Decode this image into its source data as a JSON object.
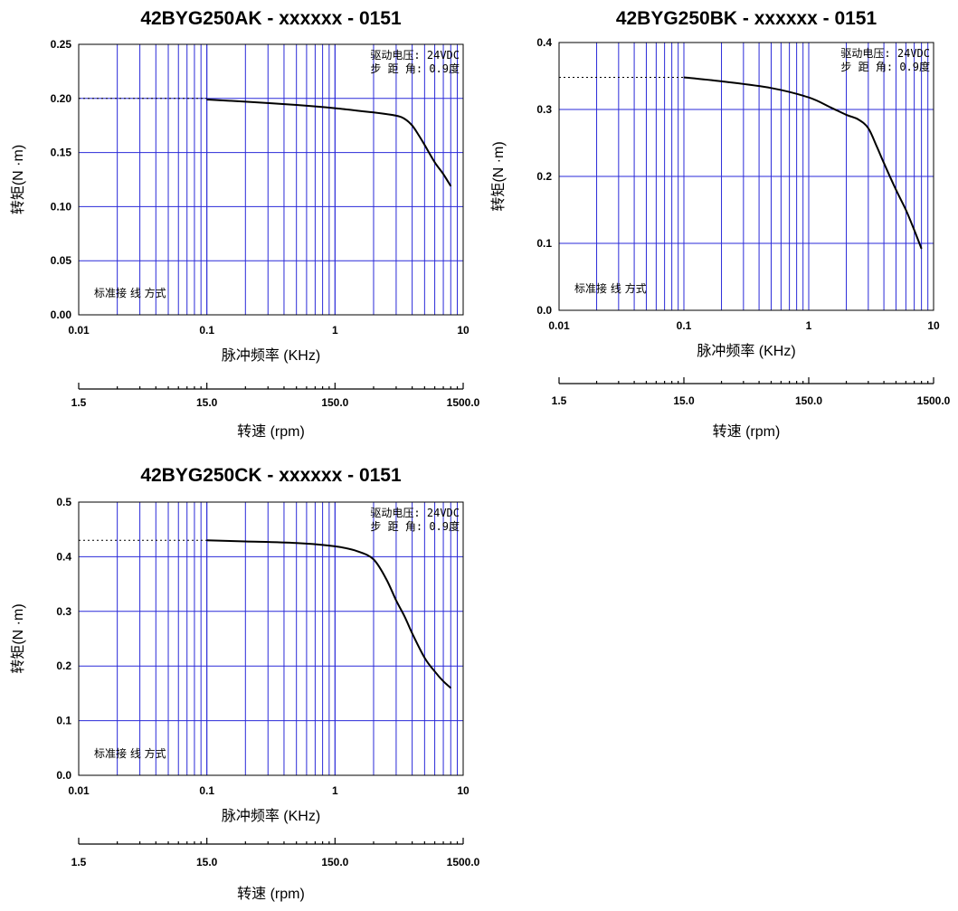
{
  "chart_data": [
    {
      "type": "line",
      "title": "42BYG250AK - xxxxxx - 0151",
      "xlabel": "脉冲频率 (KHz)",
      "ylabel": "转矩(N ·m)",
      "x2label": "转速 (rpm)",
      "xscale": "log",
      "xlim": [
        0.01,
        10
      ],
      "ylim": [
        0,
        0.25
      ],
      "yticks": [
        "0.00",
        "0.05",
        "0.10",
        "0.15",
        "0.20",
        "0.25"
      ],
      "xticks": [
        "0.01",
        "0.1",
        "1",
        "10"
      ],
      "rpmticks": [
        "1.5",
        "15.0",
        "150.0",
        "1500.0"
      ],
      "annotations": [
        "驱动电压: 24VDC",
        "步 距 角: 0.9度"
      ],
      "wiring": "标准接 线 方式",
      "holding_dashed": {
        "x": [
          0.01,
          0.1
        ],
        "y": 0.2
      },
      "series": [
        {
          "x": [
            0.1,
            0.2,
            0.5,
            1.0,
            2.0,
            3.0,
            3.5,
            4.0,
            4.5,
            5.0,
            6.0,
            7.0,
            8.0
          ],
          "y": [
            0.199,
            0.197,
            0.194,
            0.191,
            0.187,
            0.184,
            0.181,
            0.175,
            0.166,
            0.157,
            0.141,
            0.13,
            0.119
          ]
        }
      ]
    },
    {
      "type": "line",
      "title": "42BYG250BK - xxxxxx - 0151",
      "xlabel": "脉冲频率 (KHz)",
      "ylabel": "转矩(N ·m)",
      "x2label": "转速 (rpm)",
      "xscale": "log",
      "xlim": [
        0.01,
        10
      ],
      "ylim": [
        0,
        0.4
      ],
      "yticks": [
        "0.0",
        "0.1",
        "0.2",
        "0.3",
        "0.4"
      ],
      "xticks": [
        "0.01",
        "0.1",
        "1",
        "10"
      ],
      "rpmticks": [
        "1.5",
        "15.0",
        "150.0",
        "1500.0"
      ],
      "annotations": [
        "驱动电压: 24VDC",
        "步 距 角: 0.9度"
      ],
      "wiring": "标准接 线 方式",
      "holding_dashed": {
        "x": [
          0.01,
          0.1
        ],
        "y": 0.348
      },
      "series": [
        {
          "x": [
            0.1,
            0.2,
            0.5,
            1.0,
            1.5,
            2.0,
            2.5,
            3.0,
            3.5,
            4.0,
            5.0,
            6.0,
            7.0,
            8.0
          ],
          "y": [
            0.348,
            0.342,
            0.332,
            0.318,
            0.303,
            0.292,
            0.285,
            0.272,
            0.245,
            0.22,
            0.18,
            0.15,
            0.12,
            0.092
          ]
        }
      ]
    },
    {
      "type": "line",
      "title": "42BYG250CK - xxxxxx - 0151",
      "xlabel": "脉冲频率 (KHz)",
      "ylabel": "转矩(N ·m)",
      "x2label": "转速 (rpm)",
      "xscale": "log",
      "xlim": [
        0.01,
        10
      ],
      "ylim": [
        0,
        0.5
      ],
      "yticks": [
        "0.0",
        "0.1",
        "0.2",
        "0.3",
        "0.4",
        "0.5"
      ],
      "xticks": [
        "0.01",
        "0.1",
        "1",
        "10"
      ],
      "rpmticks": [
        "1.5",
        "15.0",
        "150.0",
        "1500.0"
      ],
      "annotations": [
        "驱动电压: 24VDC",
        "步 距 角: 0.9度"
      ],
      "wiring": "标准接 线 方式",
      "holding_dashed": {
        "x": [
          0.01,
          0.1
        ],
        "y": 0.43
      },
      "series": [
        {
          "x": [
            0.1,
            0.2,
            0.5,
            1.0,
            1.5,
            2.0,
            2.5,
            3.0,
            3.5,
            4.0,
            5.0,
            6.0,
            7.0,
            8.0
          ],
          "y": [
            0.43,
            0.428,
            0.425,
            0.419,
            0.41,
            0.395,
            0.36,
            0.32,
            0.29,
            0.26,
            0.215,
            0.19,
            0.172,
            0.16
          ]
        }
      ]
    }
  ]
}
